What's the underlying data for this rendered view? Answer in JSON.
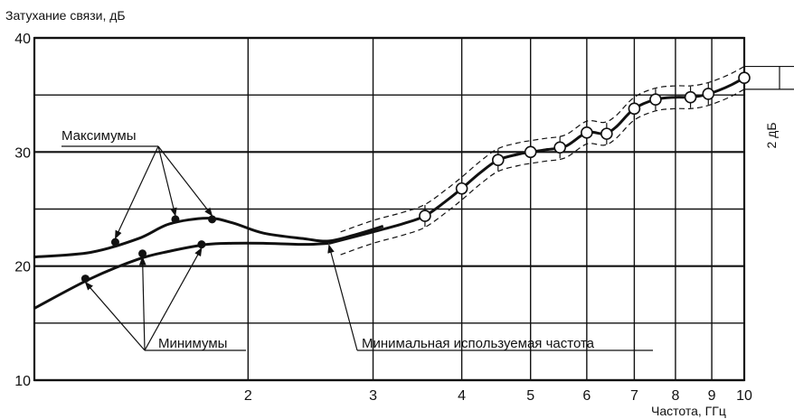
{
  "chart_data": {
    "type": "line",
    "title": "",
    "ylabel": "Затухание связи, дБ",
    "xlabel": "Частота, ГГц",
    "x_scale": "log",
    "xlim": [
      1,
      10
    ],
    "ylim": [
      10,
      40
    ],
    "y_ticks": [
      10,
      20,
      30,
      40
    ],
    "x_ticks": [
      2,
      3,
      4,
      5,
      6,
      7,
      8,
      9,
      10
    ],
    "grid": true,
    "series": [
      {
        "style": "solid",
        "x": [
          1.0,
          1.2,
          1.4,
          1.55,
          1.75,
          1.9,
          2.1,
          2.4,
          2.6,
          2.85,
          3.1
        ],
        "y": [
          20.8,
          21.2,
          22.4,
          23.7,
          24.2,
          23.8,
          22.9,
          22.4,
          22.2,
          22.8,
          23.5
        ]
      },
      {
        "style": "solid",
        "x": [
          1.0,
          1.2,
          1.4,
          1.55,
          1.75,
          1.9,
          2.1,
          2.4,
          2.6
        ],
        "y": [
          16.3,
          18.9,
          20.6,
          21.3,
          21.9,
          22.0,
          22.0,
          21.9,
          22.0
        ]
      },
      {
        "style": "solid-with-markers",
        "x": [
          2.6,
          3.0,
          3.3,
          3.55,
          3.8,
          4.0,
          4.25,
          4.5,
          4.8,
          5.0,
          5.25,
          5.6,
          6.0,
          6.35,
          6.6,
          7.0,
          7.5,
          8.0,
          8.4,
          8.8,
          9.2,
          9.6,
          10.0
        ],
        "y": [
          22.0,
          23.0,
          23.7,
          24.4,
          25.7,
          26.8,
          28.2,
          29.3,
          29.8,
          30.0,
          30.2,
          30.5,
          31.7,
          31.6,
          32.2,
          33.8,
          34.6,
          34.8,
          34.8,
          35.0,
          35.4,
          35.9,
          36.5
        ]
      },
      {
        "style": "dashed",
        "x": [
          2.7,
          3.0,
          3.3,
          3.55,
          3.8,
          4.0,
          4.25,
          4.5,
          4.8,
          5.0,
          5.25,
          5.6,
          6.0,
          6.35,
          6.6,
          7.0,
          7.5,
          8.0,
          8.4,
          8.8,
          9.2,
          9.6,
          10.0
        ],
        "y": [
          23.0,
          24.0,
          24.7,
          25.4,
          26.7,
          27.8,
          29.2,
          30.3,
          30.8,
          31.0,
          31.2,
          31.5,
          32.7,
          32.6,
          33.2,
          34.8,
          35.6,
          35.8,
          35.8,
          36.0,
          36.4,
          36.9,
          37.5
        ]
      },
      {
        "style": "dashed",
        "x": [
          2.7,
          3.0,
          3.3,
          3.55,
          3.8,
          4.0,
          4.25,
          4.5,
          4.8,
          5.0,
          5.25,
          5.6,
          6.0,
          6.35,
          6.6,
          7.0,
          7.5,
          8.0,
          8.4,
          8.8,
          9.2,
          9.6,
          10.0
        ],
        "y": [
          21.0,
          22.0,
          22.7,
          23.4,
          24.7,
          25.8,
          27.2,
          28.3,
          28.8,
          29.0,
          29.2,
          29.5,
          30.7,
          30.6,
          31.2,
          32.8,
          33.6,
          33.8,
          33.8,
          34.0,
          34.4,
          34.9,
          35.5
        ]
      }
    ],
    "markers": {
      "max_dots": {
        "x": [
          1.3,
          1.58,
          1.78
        ],
        "y": [
          22.1,
          24.1,
          24.1
        ]
      },
      "min_dots": {
        "x": [
          1.18,
          1.42,
          1.72
        ],
        "y": [
          18.9,
          21.1,
          21.9
        ]
      },
      "circles": {
        "x": [
          3.55,
          4.0,
          4.5,
          5.0,
          5.5,
          6.0,
          6.4,
          7.0,
          7.5,
          8.4,
          8.9,
          10.0
        ],
        "y": [
          24.4,
          26.8,
          29.3,
          30.0,
          30.4,
          31.7,
          31.6,
          33.8,
          34.6,
          34.8,
          35.1,
          36.5
        ]
      }
    },
    "annotations": {
      "maximums": "Максимумы",
      "minimums": "Минимумы",
      "min_freq": "Минимальная используемая частота",
      "band": "2 дБ"
    }
  }
}
